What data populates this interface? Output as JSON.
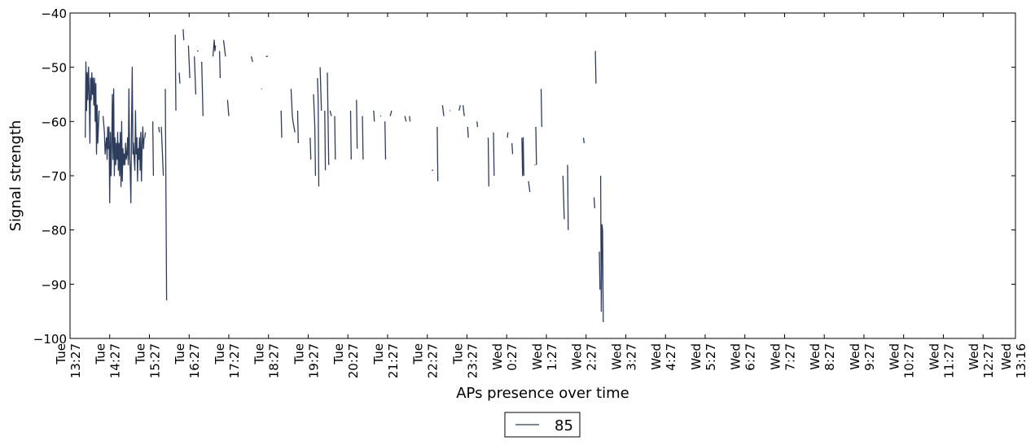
{
  "chart_data": {
    "type": "line",
    "title": "",
    "xlabel": "APs presence over time",
    "ylabel": "Signal strength",
    "ylim": [
      -100,
      -40
    ],
    "yticks": [
      "−40",
      "−50",
      "−60",
      "−70",
      "−80",
      "−90",
      "−100"
    ],
    "ytick_values": [
      -40,
      -50,
      -60,
      -70,
      -80,
      -90,
      -100
    ],
    "x_unit": "minutes since Tue 13:27",
    "xlim": [
      0,
      1429
    ],
    "xticks": [
      {
        "day": "Tue",
        "time": "13:27"
      },
      {
        "day": "Tue",
        "time": "14:27"
      },
      {
        "day": "Tue",
        "time": "15:27"
      },
      {
        "day": "Tue",
        "time": "16:27"
      },
      {
        "day": "Tue",
        "time": "17:27"
      },
      {
        "day": "Tue",
        "time": "18:27"
      },
      {
        "day": "Tue",
        "time": "19:27"
      },
      {
        "day": "Tue",
        "time": "20:27"
      },
      {
        "day": "Tue",
        "time": "21:27"
      },
      {
        "day": "Tue",
        "time": "22:27"
      },
      {
        "day": "Tue",
        "time": "23:27"
      },
      {
        "day": "Wed",
        "time": "0:27"
      },
      {
        "day": "Wed",
        "time": "1:27"
      },
      {
        "day": "Wed",
        "time": "2:27"
      },
      {
        "day": "Wed",
        "time": "3:27"
      },
      {
        "day": "Wed",
        "time": "4:27"
      },
      {
        "day": "Wed",
        "time": "5:27"
      },
      {
        "day": "Wed",
        "time": "6:27"
      },
      {
        "day": "Wed",
        "time": "7:27"
      },
      {
        "day": "Wed",
        "time": "8:27"
      },
      {
        "day": "Wed",
        "time": "9:27"
      },
      {
        "day": "Wed",
        "time": "10:27"
      },
      {
        "day": "Wed",
        "time": "11:27"
      },
      {
        "day": "Wed",
        "time": "12:27"
      },
      {
        "day": "Wed",
        "time": "13:16"
      }
    ],
    "xtick_values": [
      0,
      60,
      120,
      180,
      240,
      300,
      360,
      420,
      480,
      540,
      600,
      660,
      720,
      780,
      840,
      900,
      960,
      1020,
      1080,
      1140,
      1200,
      1260,
      1320,
      1380,
      1429
    ],
    "grid": false,
    "legend_position": "bottom-center",
    "series": [
      {
        "name": "85",
        "color": "#2e3d5c",
        "segments": [
          [
            [
              23,
              -63
            ],
            [
              24,
              -49
            ],
            [
              25,
              -58
            ],
            [
              26,
              -51
            ],
            [
              27,
              -56
            ],
            [
              28,
              -50
            ],
            [
              29,
              -55
            ],
            [
              30,
              -64
            ],
            [
              31,
              -52
            ],
            [
              32,
              -56
            ],
            [
              33,
              -51
            ],
            [
              34,
              -55
            ],
            [
              35,
              -52
            ],
            [
              36,
              -57
            ],
            [
              37,
              -52
            ],
            [
              38,
              -60
            ],
            [
              39,
              -53
            ],
            [
              40,
              -66
            ],
            [
              41,
              -57
            ],
            [
              42,
              -64
            ],
            [
              44,
              -58
            ]
          ],
          [
            [
              50,
              -59
            ],
            [
              52,
              -62
            ],
            [
              53,
              -66
            ],
            [
              55,
              -63
            ],
            [
              56,
              -67
            ],
            [
              57,
              -61
            ],
            [
              58,
              -65
            ],
            [
              59,
              -61
            ],
            [
              60,
              -75
            ],
            [
              61,
              -62
            ],
            [
              62,
              -70
            ],
            [
              63,
              -64
            ],
            [
              64,
              -55
            ],
            [
              65,
              -67
            ],
            [
              66,
              -54
            ],
            [
              67,
              -70
            ],
            [
              68,
              -63
            ],
            [
              69,
              -68
            ],
            [
              70,
              -64
            ],
            [
              71,
              -67
            ],
            [
              72,
              -62
            ],
            [
              73,
              -69
            ],
            [
              74,
              -64
            ],
            [
              75,
              -70
            ],
            [
              76,
              -62
            ],
            [
              77,
              -72
            ],
            [
              78,
              -60
            ],
            [
              79,
              -71
            ],
            [
              80,
              -65
            ],
            [
              81,
              -68
            ],
            [
              82,
              -66
            ],
            [
              83,
              -68
            ],
            [
              84,
              -64
            ],
            [
              85,
              -67
            ],
            [
              86,
              -66
            ],
            [
              87,
              -63
            ],
            [
              88,
              -68
            ],
            [
              89,
              -54
            ],
            [
              90,
              -66
            ],
            [
              91,
              -69
            ],
            [
              92,
              -75
            ],
            [
              93,
              -60
            ],
            [
              94,
              -50
            ],
            [
              95,
              -66
            ],
            [
              96,
              -64
            ],
            [
              97,
              -67
            ],
            [
              98,
              -69
            ],
            [
              99,
              -58
            ],
            [
              100,
              -66
            ],
            [
              101,
              -63
            ],
            [
              102,
              -71
            ],
            [
              103,
              -65
            ],
            [
              104,
              -67
            ],
            [
              105,
              -63
            ],
            [
              106,
              -69
            ],
            [
              107,
              -62
            ],
            [
              108,
              -71
            ],
            [
              109,
              -64
            ],
            [
              110,
              -61
            ],
            [
              111,
              -65
            ],
            [
              112,
              -63
            ]
          ],
          [
            [
              113,
              -63
            ],
            [
              114,
              -62
            ]
          ],
          [
            [
              125,
              -60
            ],
            [
              126,
              -70
            ]
          ],
          [
            [
              134,
              -61
            ],
            [
              135,
              -62
            ]
          ],
          [
            [
              138,
              -61
            ],
            [
              141,
              -70
            ]
          ],
          [
            [
              144,
              -54
            ],
            [
              146,
              -93
            ]
          ],
          [
            [
              159,
              -44
            ],
            [
              160,
              -58
            ]
          ],
          [
            [
              165,
              -51
            ],
            [
              166,
              -53
            ]
          ],
          [
            [
              171,
              -43
            ],
            [
              172,
              -45
            ]
          ],
          [
            [
              179,
              -46
            ],
            [
              181,
              -52
            ]
          ],
          [
            [
              188,
              -48
            ],
            [
              190,
              -55
            ]
          ],
          [
            [
              192,
              -47
            ],
            [
              194,
              -47
            ]
          ],
          [
            [
              199,
              -49
            ],
            [
              201,
              -59
            ]
          ],
          [
            [
              216,
              -48
            ],
            [
              218,
              -45
            ],
            [
              219,
              -47
            ],
            [
              220,
              -46
            ]
          ],
          [
            [
              226,
              -47
            ],
            [
              227,
              -52
            ]
          ],
          [
            [
              232,
              -45
            ],
            [
              235,
              -48
            ]
          ],
          [
            [
              238,
              -56
            ],
            [
              240,
              -59
            ]
          ],
          [
            [
              274,
              -48
            ],
            [
              276,
              -49
            ]
          ],
          [
            [
              289,
              -54
            ],
            [
              290,
              -54
            ]
          ],
          [
            [
              296,
              -48
            ],
            [
              299,
              -48
            ]
          ],
          [
            [
              319,
              -58
            ],
            [
              320,
              -63
            ]
          ],
          [
            [
              334,
              -54
            ],
            [
              336,
              -59
            ],
            [
              337,
              -60
            ],
            [
              340,
              -62
            ]
          ],
          [
            [
              344,
              -58
            ],
            [
              345,
              -64
            ]
          ],
          [
            [
              363,
              -63
            ],
            [
              364,
              -67
            ]
          ],
          [
            [
              368,
              -55
            ],
            [
              370,
              -61
            ],
            [
              371,
              -70
            ]
          ],
          [
            [
              374,
              -52
            ],
            [
              375,
              -56
            ],
            [
              376,
              -72
            ]
          ],
          [
            [
              378,
              -50
            ],
            [
              380,
              -58
            ]
          ],
          [
            [
              385,
              -58
            ],
            [
              386,
              -69
            ]
          ],
          [
            [
              389,
              -51
            ],
            [
              391,
              -68
            ]
          ],
          [
            [
              393,
              -58
            ],
            [
              395,
              -59
            ]
          ],
          [
            [
              400,
              -59
            ],
            [
              401,
              -67
            ]
          ],
          [
            [
              424,
              -58
            ],
            [
              425,
              -67
            ]
          ],
          [
            [
              433,
              -56
            ],
            [
              434,
              -65
            ]
          ],
          [
            [
              442,
              -59
            ],
            [
              443,
              -67
            ]
          ],
          [
            [
              459,
              -58
            ],
            [
              460,
              -60
            ]
          ],
          [
            [
              469,
              -59
            ],
            [
              470,
              -59
            ]
          ],
          [
            [
              476,
              -60
            ],
            [
              477,
              -67
            ]
          ],
          [
            [
              484,
              -59
            ],
            [
              486,
              -58
            ]
          ],
          [
            [
              506,
              -59
            ],
            [
              508,
              -60
            ]
          ],
          [
            [
              513,
              -59
            ],
            [
              514,
              -60
            ]
          ],
          [
            [
              547,
              -69
            ],
            [
              549,
              -69
            ]
          ],
          [
            [
              555,
              -61
            ],
            [
              556,
              -71
            ]
          ],
          [
            [
              563,
              -57
            ],
            [
              565,
              -59
            ]
          ],
          [
            [
              574,
              -58
            ],
            [
              575,
              -58
            ]
          ],
          [
            [
              588,
              -58
            ],
            [
              590,
              -57
            ]
          ],
          [
            [
              594,
              -57
            ],
            [
              596,
              -59
            ]
          ],
          [
            [
              601,
              -61
            ],
            [
              602,
              -63
            ]
          ],
          [
            [
              615,
              -60
            ],
            [
              616,
              -61
            ]
          ],
          [
            [
              632,
              -63
            ],
            [
              633,
              -72
            ]
          ],
          [
            [
              640,
              -62
            ],
            [
              641,
              -70
            ]
          ],
          [
            [
              661,
              -63
            ],
            [
              662,
              -62
            ]
          ],
          [
            [
              668,
              -64
            ],
            [
              669,
              -66
            ]
          ],
          [
            [
              683,
              -63
            ],
            [
              684,
              -70
            ],
            [
              685,
              -63
            ],
            [
              686,
              -70
            ]
          ],
          [
            [
              693,
              -71
            ],
            [
              695,
              -73
            ]
          ],
          [
            [
              702,
              -68
            ],
            [
              703,
              -68
            ]
          ],
          [
            [
              704,
              -61
            ],
            [
              705,
              -68
            ]
          ],
          [
            [
              712,
              -54
            ],
            [
              713,
              -61
            ]
          ],
          [
            [
              745,
              -70
            ],
            [
              747,
              -78
            ]
          ],
          [
            [
              752,
              -68
            ],
            [
              753,
              -80
            ]
          ],
          [
            [
              776,
              -63
            ],
            [
              777,
              -64
            ]
          ],
          [
            [
              794,
              -47
            ],
            [
              795,
              -53
            ]
          ],
          [
            [
              792,
              -74
            ],
            [
              793,
              -76
            ]
          ],
          [
            [
              800,
              -84
            ],
            [
              801,
              -91
            ]
          ],
          [
            [
              802,
              -70
            ],
            [
              803,
              -95
            ],
            [
              804,
              -79
            ],
            [
              805,
              -80
            ],
            [
              806,
              -97
            ]
          ]
        ]
      }
    ]
  }
}
